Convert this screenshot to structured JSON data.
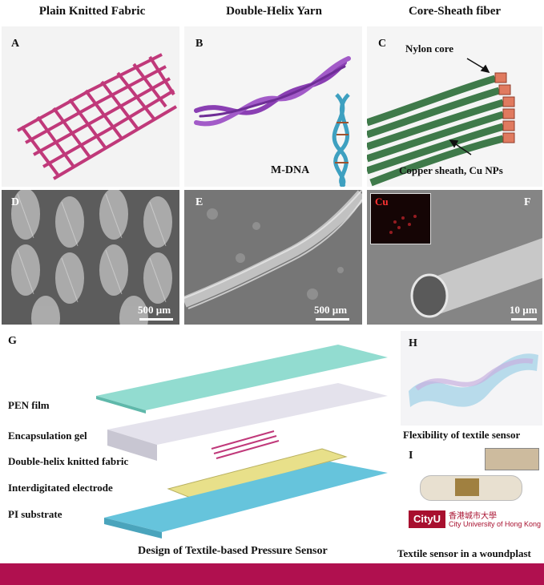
{
  "columns": {
    "col1": "Plain Knitted Fabric",
    "col2": "Double-Helix Yarn",
    "col3": "Core-Sheath fiber"
  },
  "panels": {
    "A": "A",
    "B": "B",
    "C": "C",
    "D": "D",
    "E": "E",
    "F": "F",
    "G": "G",
    "H": "H",
    "I": "I"
  },
  "panelB": {
    "dna_label": "M-DNA"
  },
  "panelC": {
    "core_label": "Nylon core",
    "sheath_label": "Copper sheath, Cu NPs"
  },
  "panelD": {
    "scale": "500 µm"
  },
  "panelE": {
    "scale": "500 µm"
  },
  "panelF": {
    "scale": "10 µm",
    "inset_label": "Cu"
  },
  "panelG": {
    "layers": [
      "PEN film",
      "Encapsulation gel",
      "Double-helix knitted fabric",
      "Interdigitated electrode",
      "PI substrate"
    ],
    "caption": "Design of Textile-based Pressure Sensor"
  },
  "panelH": {
    "caption": "Flexibility of textile sensor"
  },
  "panelI": {
    "caption": "Textile sensor in a woundplast",
    "logo_cn": "香港城市大學",
    "logo_en": "City University of Hong Kong",
    "logo_mark": "CityU"
  },
  "colors": {
    "bottom_band": "#b0104f",
    "knit": "#c0397a",
    "yarn": "#8a3fb3",
    "fiber": "#3f7a4a",
    "cu_core": "#e07a5f",
    "pen": "#7fd6c8",
    "pi": "#66c4dc",
    "electrode": "#e8e08a"
  }
}
